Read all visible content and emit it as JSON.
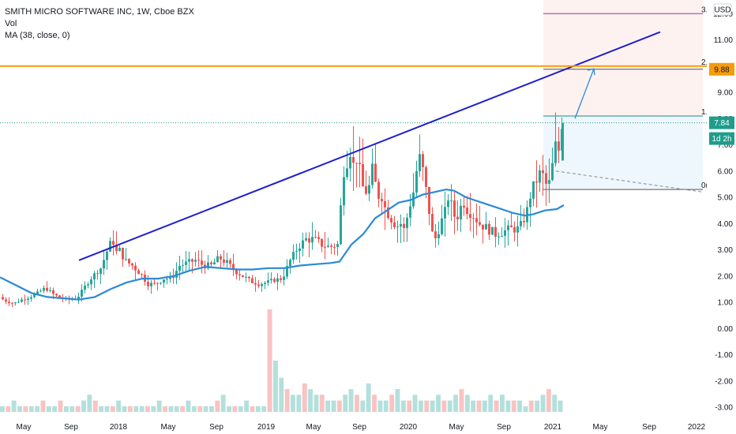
{
  "legend": {
    "title": "SMITH MICRO SOFTWARE INC, 1W, Cboe BZX",
    "vol": "Vol",
    "ma": "MA (38, close, 0)"
  },
  "currency": "USD",
  "colors": {
    "up": "#26a69a",
    "down": "#ef5350",
    "ma": "#2a8ad6",
    "trend": "#1f1fcc",
    "orange": "#f59b0c",
    "fib_top": "#a0338f",
    "fib_mid": "#1c8c7a",
    "tag_green": "#1f9c8c",
    "grid": "#e0e3eb"
  },
  "price_tags": [
    {
      "label": "9.88",
      "price": 9.88,
      "color": "#f59b0c"
    },
    {
      "label": "7.84",
      "price": 7.84,
      "color": "#1f9c8c"
    },
    {
      "label": "1d 2h",
      "price": 7.24,
      "color": "#1f9c8c"
    }
  ],
  "fib_labels": [
    {
      "label": "3.",
      "price": 12.0
    },
    {
      "label": "2.",
      "price": 10.0
    },
    {
      "label": "1.(",
      "price": 8.1
    },
    {
      "label": "0(",
      "price": 5.3
    }
  ],
  "chart_data": {
    "type": "candlestick",
    "x_axis_ticks": [
      "May",
      "Sep",
      "2018",
      "May",
      "Sep",
      "2019",
      "May",
      "Sep",
      "2020",
      "May",
      "Sep",
      "2021",
      "May",
      "Sep",
      "2022"
    ],
    "y_axis_ticks": [
      12.0,
      11.0,
      10.0,
      9.0,
      8.0,
      7.0,
      6.0,
      5.0,
      4.0,
      3.0,
      2.0,
      1.0,
      0.0,
      -1.0,
      -2.0,
      -3.0
    ],
    "ylim": [
      -3.3,
      12.4
    ],
    "price_path": [
      [
        0,
        1.2
      ],
      [
        10,
        1.05
      ],
      [
        20,
        0.95
      ],
      [
        30,
        1.1
      ],
      [
        40,
        1.2
      ],
      [
        50,
        1.35
      ],
      [
        60,
        1.55
      ],
      [
        70,
        1.3
      ],
      [
        80,
        1.15
      ],
      [
        90,
        1.1
      ],
      [
        100,
        1.15
      ],
      [
        110,
        1.6
      ],
      [
        120,
        2.0
      ],
      [
        130,
        2.3
      ],
      [
        140,
        3.1
      ],
      [
        145,
        3.4
      ],
      [
        150,
        2.9
      ],
      [
        155,
        3.0
      ],
      [
        160,
        2.6
      ],
      [
        170,
        2.4
      ],
      [
        180,
        2.1
      ],
      [
        190,
        1.7
      ],
      [
        200,
        1.7
      ],
      [
        210,
        1.9
      ],
      [
        220,
        1.9
      ],
      [
        230,
        2.4
      ],
      [
        240,
        2.5
      ],
      [
        250,
        2.6
      ],
      [
        260,
        2.4
      ],
      [
        270,
        2.4
      ],
      [
        280,
        2.7
      ],
      [
        290,
        2.5
      ],
      [
        300,
        2.2
      ],
      [
        310,
        2.0
      ],
      [
        320,
        1.8
      ],
      [
        330,
        1.7
      ],
      [
        340,
        1.75
      ],
      [
        350,
        1.85
      ],
      [
        360,
        1.9
      ],
      [
        370,
        2.6
      ],
      [
        380,
        3.1
      ],
      [
        390,
        3.4
      ],
      [
        400,
        3.4
      ],
      [
        410,
        3.2
      ],
      [
        420,
        3.1
      ],
      [
        430,
        3.2
      ],
      [
        435,
        5.0
      ],
      [
        438,
        6.0
      ],
      [
        442,
        6.4
      ],
      [
        446,
        6.8
      ],
      [
        450,
        6.2
      ],
      [
        455,
        6.6
      ],
      [
        460,
        5.5
      ],
      [
        465,
        5.2
      ],
      [
        470,
        5.4
      ],
      [
        475,
        6.2
      ],
      [
        480,
        5.0
      ],
      [
        485,
        5.2
      ],
      [
        490,
        4.6
      ],
      [
        500,
        4.1
      ],
      [
        505,
        3.9
      ],
      [
        510,
        4.0
      ],
      [
        515,
        3.7
      ],
      [
        520,
        4.6
      ],
      [
        525,
        5.0
      ],
      [
        530,
        6.0
      ],
      [
        535,
        6.6
      ],
      [
        540,
        5.6
      ],
      [
        545,
        4.7
      ],
      [
        550,
        3.6
      ],
      [
        555,
        3.4
      ],
      [
        560,
        4.0
      ],
      [
        565,
        4.3
      ],
      [
        570,
        5.0
      ],
      [
        575,
        4.6
      ],
      [
        580,
        4.1
      ],
      [
        585,
        4.6
      ],
      [
        590,
        4.8
      ],
      [
        595,
        4.5
      ],
      [
        600,
        4.4
      ],
      [
        605,
        4.2
      ],
      [
        610,
        4.0
      ],
      [
        615,
        3.9
      ],
      [
        620,
        3.8
      ],
      [
        625,
        3.7
      ],
      [
        630,
        3.6
      ],
      [
        640,
        3.7
      ],
      [
        650,
        3.8
      ],
      [
        660,
        3.8
      ],
      [
        665,
        4.1
      ],
      [
        670,
        4.5
      ],
      [
        675,
        5.2
      ],
      [
        680,
        5.5
      ],
      [
        685,
        5.9
      ],
      [
        690,
        5.8
      ],
      [
        695,
        5.4
      ],
      [
        700,
        5.6
      ],
      [
        704,
        6.8
      ],
      [
        708,
        7.1
      ],
      [
        712,
        6.5
      ],
      [
        714,
        7.84
      ]
    ],
    "ma_path": [
      [
        0,
        1.95
      ],
      [
        20,
        1.65
      ],
      [
        40,
        1.35
      ],
      [
        60,
        1.2
      ],
      [
        80,
        1.15
      ],
      [
        100,
        1.1
      ],
      [
        120,
        1.2
      ],
      [
        140,
        1.5
      ],
      [
        160,
        1.75
      ],
      [
        180,
        1.9
      ],
      [
        200,
        1.9
      ],
      [
        220,
        2.0
      ],
      [
        240,
        2.2
      ],
      [
        260,
        2.35
      ],
      [
        280,
        2.3
      ],
      [
        300,
        2.25
      ],
      [
        320,
        2.25
      ],
      [
        340,
        2.3
      ],
      [
        360,
        2.3
      ],
      [
        380,
        2.4
      ],
      [
        400,
        2.45
      ],
      [
        420,
        2.5
      ],
      [
        430,
        2.55
      ],
      [
        445,
        3.2
      ],
      [
        460,
        3.6
      ],
      [
        475,
        4.2
      ],
      [
        490,
        4.5
      ],
      [
        505,
        4.8
      ],
      [
        520,
        4.9
      ],
      [
        535,
        5.1
      ],
      [
        550,
        5.2
      ],
      [
        565,
        5.3
      ],
      [
        575,
        5.25
      ],
      [
        590,
        5.0
      ],
      [
        610,
        4.8
      ],
      [
        630,
        4.6
      ],
      [
        650,
        4.4
      ],
      [
        665,
        4.3
      ],
      [
        675,
        4.35
      ],
      [
        690,
        4.5
      ],
      [
        705,
        4.55
      ],
      [
        714,
        4.7
      ]
    ],
    "volume": [
      1,
      1,
      2,
      1,
      1,
      1,
      1,
      2,
      1,
      1,
      2,
      1,
      1,
      1,
      2,
      3,
      2,
      1,
      1,
      1,
      2,
      1,
      1,
      1,
      1,
      1,
      1,
      2,
      1,
      1,
      1,
      1,
      2,
      1,
      1,
      1,
      1,
      2,
      3,
      1,
      1,
      1,
      2,
      1,
      1,
      1,
      18,
      9,
      6,
      4,
      3,
      3,
      5,
      4,
      3,
      3,
      2,
      2,
      2,
      3,
      4,
      3,
      2,
      5,
      3,
      2,
      2,
      3,
      4,
      2,
      2,
      3,
      2,
      2,
      2,
      3,
      2,
      2,
      3,
      4,
      3,
      2,
      2,
      2,
      3,
      2,
      3,
      2,
      2,
      2,
      1,
      2,
      2,
      3,
      4,
      3,
      2
    ],
    "annotations": [
      {
        "type": "trendline",
        "points": [
          [
            100,
            2.6
          ],
          [
            836,
            11.3
          ]
        ]
      },
      {
        "type": "horizontal",
        "price": 10.0,
        "color": "orange"
      },
      {
        "type": "arrow",
        "points": [
          [
            728,
            8.0
          ],
          [
            752,
            9.9
          ]
        ]
      },
      {
        "type": "dashed",
        "points": [
          [
            704,
            6.0
          ],
          [
            890,
            5.2
          ]
        ]
      }
    ]
  }
}
